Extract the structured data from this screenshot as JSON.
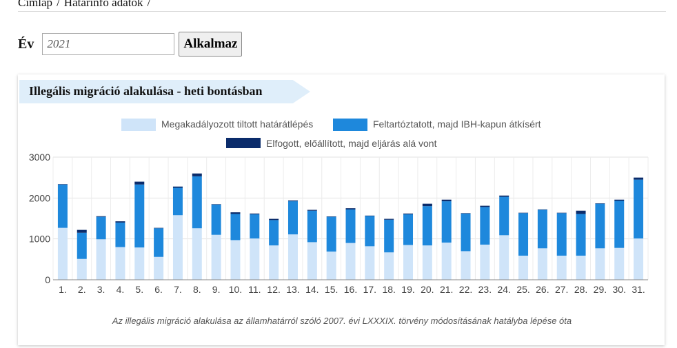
{
  "breadcrumb": {
    "items": [
      "Címlap",
      "/",
      "Határinfó adatok",
      "/"
    ]
  },
  "filter": {
    "label": "Év",
    "value": "2021",
    "button": "Alkalmaz"
  },
  "panel": {
    "title": "Illegális migráció alakulása - heti bontásban",
    "caption": "Az illegális migráció alakulása az államhatárról szóló 2007. évi LXXXIX. törvény módosításának hatályba lépése óta"
  },
  "chart_data": {
    "type": "bar",
    "stacked": true,
    "categories": [
      "1.",
      "2.",
      "3.",
      "4.",
      "5.",
      "6.",
      "7.",
      "8.",
      "9.",
      "10.",
      "11.",
      "12.",
      "13.",
      "14.",
      "15.",
      "16.",
      "17.",
      "18.",
      "19.",
      "20.",
      "21.",
      "22.",
      "23.",
      "24.",
      "25.",
      "26.",
      "27.",
      "28.",
      "29.",
      "30.",
      "31."
    ],
    "series": [
      {
        "name": "Megakadályozott tiltott határátlépés",
        "color": "#cfe4f9",
        "values": [
          1270,
          510,
          990,
          800,
          790,
          560,
          1580,
          1260,
          1100,
          970,
          1010,
          840,
          1110,
          920,
          690,
          900,
          820,
          670,
          850,
          840,
          910,
          700,
          860,
          1090,
          590,
          770,
          590,
          590,
          770,
          780,
          1010
        ]
      },
      {
        "name": "Feltartóztatott, majd IBH-kapun átkísért",
        "color": "#1e88dc",
        "values": [
          1060,
          640,
          550,
          600,
          1540,
          700,
          670,
          1270,
          740,
          640,
          590,
          620,
          810,
          770,
          850,
          820,
          740,
          800,
          750,
          960,
          1010,
          920,
          920,
          940,
          1040,
          940,
          1040,
          1020,
          1090,
          1150,
          1440
        ]
      },
      {
        "name": "Elfogott, előállított, majd eljárás alá vont",
        "color": "#0b2c6b",
        "values": [
          10,
          70,
          15,
          30,
          70,
          10,
          30,
          70,
          10,
          40,
          20,
          30,
          20,
          20,
          10,
          30,
          10,
          20,
          20,
          60,
          40,
          10,
          30,
          30,
          10,
          10,
          10,
          80,
          10,
          30,
          50
        ]
      }
    ],
    "yticks": [
      0,
      1000,
      2000,
      3000
    ],
    "ylim": [
      0,
      3000
    ],
    "grid": true,
    "legend_position": "top"
  }
}
